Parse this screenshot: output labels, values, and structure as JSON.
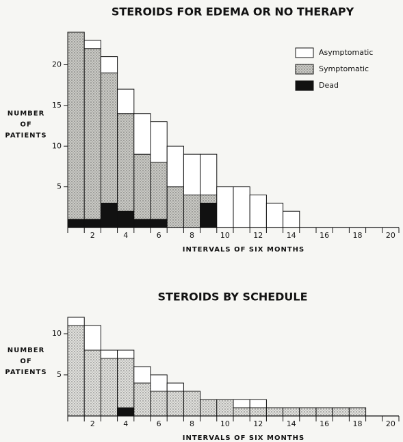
{
  "chart_data": [
    {
      "type": "bar",
      "stacked": true,
      "title": "STEROIDS FOR EDEMA OR NO THERAPY",
      "y_label": [
        "NUMBER",
        "OF",
        "PATIENTS"
      ],
      "x_label": "INTERVALS OF SIX MONTHS",
      "x": [
        1,
        2,
        3,
        4,
        5,
        6,
        7,
        8,
        9,
        10,
        11,
        12,
        13,
        14,
        15,
        16,
        17,
        18,
        19,
        20
      ],
      "xlim": [
        0.5,
        20.5
      ],
      "xticks": [
        2,
        4,
        6,
        8,
        10,
        12,
        14,
        16,
        18,
        20
      ],
      "ylim": [
        0,
        24
      ],
      "yticks": [
        5,
        10,
        15,
        20
      ],
      "legend": "upper right",
      "series": [
        {
          "name": "Dead",
          "color": "#111111",
          "values": [
            1,
            1,
            3,
            2,
            1,
            1,
            0,
            0,
            3,
            0,
            0,
            0,
            0,
            0,
            0,
            0,
            0,
            0,
            0,
            0
          ]
        },
        {
          "name": "Symptomatic",
          "color": "#c9c9c4",
          "pattern": "stipple",
          "values": [
            23,
            21,
            16,
            12,
            8,
            7,
            5,
            4,
            1,
            0,
            0,
            0,
            0,
            0,
            0,
            0,
            0,
            0,
            0,
            0
          ]
        },
        {
          "name": "Asymptomatic",
          "color": "#ffffff",
          "values": [
            0,
            1,
            2,
            3,
            5,
            5,
            5,
            5,
            5,
            5,
            5,
            4,
            3,
            2,
            0,
            0,
            0,
            0,
            0,
            0
          ]
        }
      ]
    },
    {
      "type": "bar",
      "stacked": true,
      "title": "STEROIDS BY SCHEDULE",
      "y_label": [
        "NUMBER",
        "OF",
        "PATIENTS"
      ],
      "x_label": "INTERVALS OF SIX MONTHS",
      "x": [
        1,
        2,
        3,
        4,
        5,
        6,
        7,
        8,
        9,
        10,
        11,
        12,
        13,
        14,
        15,
        16,
        17,
        18,
        19,
        20
      ],
      "xlim": [
        0.5,
        20.5
      ],
      "xticks": [
        2,
        4,
        6,
        8,
        10,
        12,
        14,
        16,
        18,
        20
      ],
      "ylim": [
        0,
        12
      ],
      "yticks": [
        5,
        10
      ],
      "series": [
        {
          "color": "#111111",
          "values": [
            0,
            0,
            0,
            1,
            0,
            0,
            0,
            0,
            0,
            0,
            0,
            0,
            0,
            0,
            0,
            0,
            0,
            0,
            0,
            0
          ]
        },
        {
          "color": "#e0e0dc",
          "pattern": "stipple",
          "values": [
            11,
            8,
            7,
            6,
            4,
            3,
            3,
            3,
            2,
            2,
            1,
            1,
            1,
            1,
            1,
            1,
            1,
            1,
            0,
            0
          ]
        },
        {
          "color": "#ffffff",
          "values": [
            1,
            3,
            1,
            1,
            2,
            2,
            1,
            0,
            0,
            0,
            1,
            1,
            0,
            0,
            0,
            0,
            0,
            0,
            0,
            0
          ]
        }
      ]
    }
  ]
}
